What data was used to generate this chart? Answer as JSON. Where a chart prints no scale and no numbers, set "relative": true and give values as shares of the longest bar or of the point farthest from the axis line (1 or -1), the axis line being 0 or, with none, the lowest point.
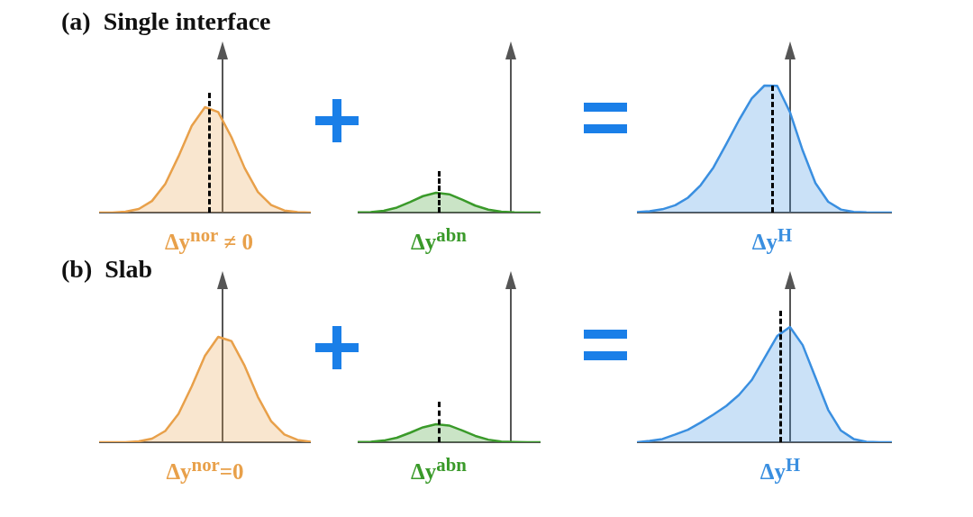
{
  "chart_data": [
    {
      "type": "area",
      "title": "(a)  Single interface",
      "xlabel": "Δy$^{nor}$ ≠ 0",
      "relative": true,
      "categories": [
        null,
        null,
        null,
        null,
        null,
        null,
        null,
        null,
        null,
        null,
        null,
        null,
        null,
        null,
        null,
        null,
        null
      ],
      "series": [
        {
          "color": "#e8a04a",
          "values": [
            0,
            0,
            0.008,
            0.034,
            0.11,
            0.272,
            0.533,
            0.823,
            1,
            0.954,
            0.716,
            0.422,
            0.196,
            0.072,
            0.02,
            0.005,
            0
          ]
        }
      ]
    },
    {
      "type": "area",
      "xlabel": "Δy$^{abn}$",
      "relative": true,
      "categories": [
        null,
        null,
        null,
        null,
        null,
        null,
        null,
        null,
        null,
        null,
        null,
        null,
        null,
        null,
        null
      ],
      "series": [
        {
          "color": "#3a9a2a",
          "values": [
            0.006,
            0.025,
            0.094,
            0.252,
            0.528,
            0.83,
            1,
            0.925,
            0.654,
            0.352,
            0.145,
            0.044,
            0.013,
            0,
            0
          ]
        }
      ]
    },
    {
      "type": "area",
      "xlabel": "Δy$^{H}$",
      "relative": true,
      "categories": [
        null,
        null,
        null,
        null,
        null,
        null,
        null,
        null,
        null,
        null,
        null,
        null,
        null,
        null,
        null,
        null,
        null,
        null,
        null,
        null,
        null
      ],
      "series": [
        {
          "color": "#3a8fe0",
          "values": [
            0.004,
            0.01,
            0.026,
            0.058,
            0.117,
            0.216,
            0.355,
            0.538,
            0.727,
            0.898,
            1,
            0.998,
            0.791,
            0.489,
            0.232,
            0.085,
            0.024,
            0.005,
            0.001,
            0,
            0
          ]
        }
      ]
    },
    {
      "type": "area",
      "title": "(b)  Slab",
      "xlabel": "Δy$^{nor}$=0",
      "relative": true,
      "categories": [
        null,
        null,
        null,
        null,
        null,
        null,
        null,
        null,
        null,
        null,
        null,
        null,
        null,
        null,
        null,
        null,
        null
      ],
      "series": [
        {
          "color": "#e8a04a",
          "values": [
            0,
            0,
            0.001,
            0.008,
            0.034,
            0.107,
            0.269,
            0.53,
            0.82,
            1,
            0.96,
            0.725,
            0.431,
            0.2,
            0.074,
            0.022,
            0.005
          ]
        }
      ]
    },
    {
      "type": "area",
      "xlabel": "Δy$^{abn}$",
      "relative": true,
      "categories": [
        null,
        null,
        null,
        null,
        null,
        null,
        null,
        null,
        null,
        null,
        null,
        null,
        null,
        null,
        null
      ],
      "series": [
        {
          "color": "#3a9a2a",
          "values": [
            0.007,
            0.029,
            0.094,
            0.252,
            0.525,
            0.827,
            1,
            0.928,
            0.655,
            0.353,
            0.144,
            0.043,
            0.014,
            0,
            0
          ]
        }
      ]
    },
    {
      "type": "area",
      "xlabel": "Δy$^{H}$",
      "relative": true,
      "categories": [
        null,
        null,
        null,
        null,
        null,
        null,
        null,
        null,
        null,
        null,
        null,
        null,
        null,
        null,
        null,
        null,
        null,
        null,
        null,
        null,
        null
      ],
      "series": [
        {
          "color": "#3a8fe0",
          "values": [
            0,
            0.011,
            0.028,
            0.067,
            0.109,
            0.171,
            0.24,
            0.315,
            0.41,
            0.539,
            0.73,
            0.921,
            1,
            0.843,
            0.562,
            0.281,
            0.101,
            0.028,
            0.004,
            0,
            0
          ]
        }
      ]
    }
  ]
}
